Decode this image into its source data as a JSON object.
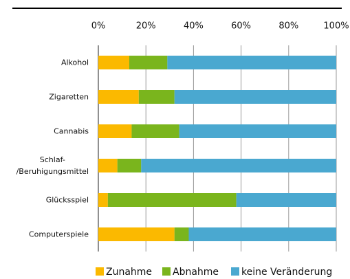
{
  "chart_data": {
    "type": "stacked-bar-horizontal",
    "categories": [
      "Alkohol",
      "Zigaretten",
      "Cannabis",
      "Schlaf-\n/Beruhigungsmittel",
      "Glücksspiel",
      "Computerspiele"
    ],
    "series": [
      {
        "name": "Zunahme",
        "color": "#fbb900",
        "values": [
          13,
          17,
          14,
          8,
          4,
          32
        ]
      },
      {
        "name": "Abnahme",
        "color": "#7ab51d",
        "values": [
          16,
          15,
          20,
          10,
          54,
          6
        ]
      },
      {
        "name": "keine Veränderung",
        "color": "#4aa8d0",
        "values": [
          71,
          68,
          66,
          82,
          42,
          62
        ]
      }
    ],
    "xlim": [
      0,
      100
    ],
    "xticks": [
      {
        "value": 0,
        "label": "0%"
      },
      {
        "value": 20,
        "label": "20%"
      },
      {
        "value": 40,
        "label": "40%"
      },
      {
        "value": 60,
        "label": "60%"
      },
      {
        "value": 80,
        "label": "80%"
      },
      {
        "value": 100,
        "label": "100%"
      }
    ],
    "grid": true,
    "legend": "bottom"
  }
}
